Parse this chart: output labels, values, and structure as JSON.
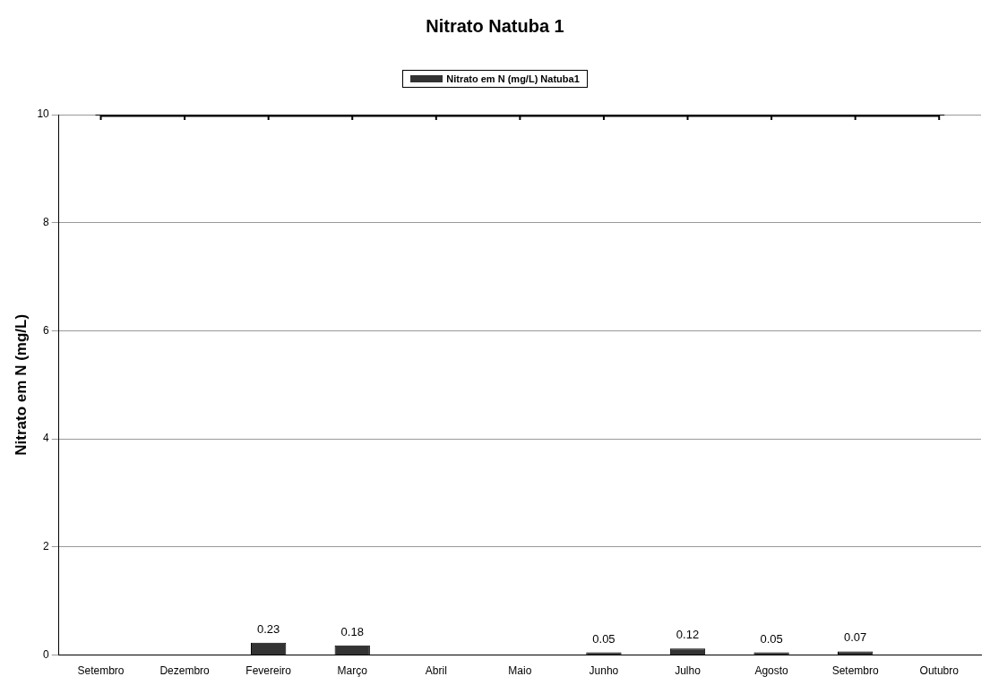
{
  "chart_data": {
    "type": "bar",
    "title": "Nitrato Natuba 1",
    "ylabel": "Nitrato em N (mg/L)",
    "categories": [
      "Setembro",
      "Dezembro",
      "Fevereiro",
      "Março",
      "Abril",
      "Maio",
      "Junho",
      "Julho",
      "Agosto",
      "Setembro",
      "Outubro"
    ],
    "series": [
      {
        "name": "Nitrato em N (mg/L) Natuba1",
        "color": "#333333",
        "values": [
          null,
          null,
          0.23,
          0.18,
          null,
          null,
          0.05,
          0.12,
          0.05,
          0.07,
          null
        ],
        "value_labels": [
          null,
          null,
          "0.23",
          "0.18",
          null,
          null,
          "0.05",
          "0.12",
          "0.05",
          "0.07",
          null
        ]
      },
      {
        "type": "line",
        "color": "#000000",
        "marker": "cross",
        "values": [
          10,
          10,
          10,
          10,
          10,
          10,
          10,
          10,
          10,
          10,
          10
        ]
      }
    ],
    "ylim": [
      0,
      10
    ],
    "yticks": [
      0,
      2,
      4,
      6,
      8,
      10
    ],
    "grid": "y",
    "legend": "top"
  }
}
